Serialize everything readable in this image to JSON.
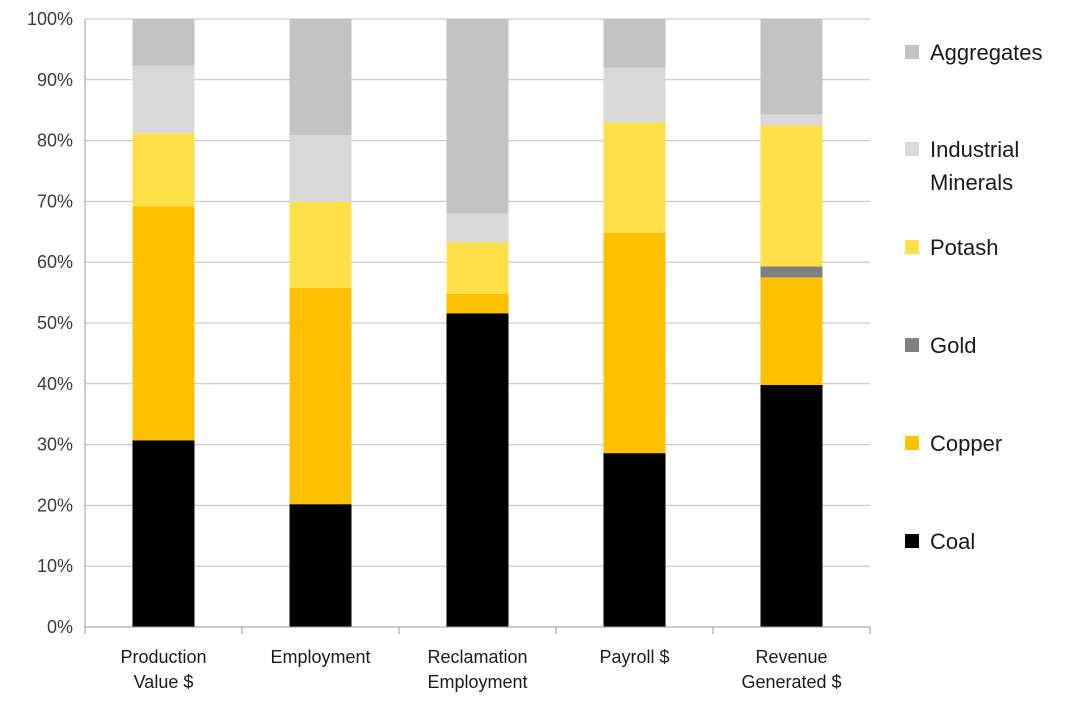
{
  "chart_data": {
    "type": "bar",
    "stacked": true,
    "categories": [
      [
        "Production",
        "Value $"
      ],
      [
        "Employment"
      ],
      [
        "Reclamation",
        "Employment"
      ],
      [
        "Payroll $"
      ],
      [
        "Revenue",
        "Generated $"
      ]
    ],
    "y_ticks": [
      "0%",
      "10%",
      "20%",
      "30%",
      "40%",
      "50%",
      "60%",
      "70%",
      "80%",
      "90%",
      "100%"
    ],
    "ylim": [
      0,
      100
    ],
    "grid": true,
    "legend_position": "right",
    "series": [
      {
        "name": "Coal",
        "legend_lines": [
          "Coal"
        ],
        "color": "#000000",
        "values": [
          30.7,
          20.2,
          51.6,
          28.6,
          39.8
        ]
      },
      {
        "name": "Copper",
        "legend_lines": [
          "Copper"
        ],
        "color": "#FFC000",
        "values": [
          38.5,
          35.6,
          3.2,
          36.2,
          17.7
        ]
      },
      {
        "name": "Gold",
        "legend_lines": [
          "Gold"
        ],
        "color": "#7F7F7F",
        "values": [
          0,
          0,
          0,
          0,
          1.8
        ]
      },
      {
        "name": "Potash",
        "legend_lines": [
          "Potash"
        ],
        "color": "#FFE04B",
        "values": [
          12.0,
          14.1,
          8.5,
          18.2,
          23.2
        ]
      },
      {
        "name": "Industrial Minerals",
        "legend_lines": [
          "Industrial",
          "Minerals"
        ],
        "color": "#D9D9D9",
        "values": [
          11.1,
          11.0,
          4.7,
          9.0,
          1.8
        ]
      },
      {
        "name": "Aggregates",
        "legend_lines": [
          "Aggregates"
        ],
        "color": "#C3C3C3",
        "values": [
          7.7,
          19.1,
          32.0,
          8.0,
          15.7
        ]
      }
    ]
  }
}
